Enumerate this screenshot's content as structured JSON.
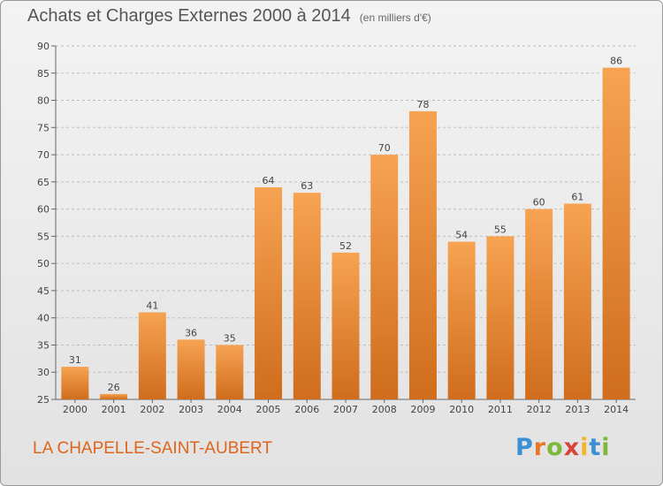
{
  "header": {
    "title": "Achats et Charges Externes 2000 à 2014",
    "unit": "(en milliers d'€)"
  },
  "footer": {
    "commune": "LA CHAPELLE-SAINT-AUBERT",
    "logo_letters": [
      {
        "ch": "P",
        "color": "#3b8fd4"
      },
      {
        "ch": "r",
        "color": "#e8762a"
      },
      {
        "ch": "o",
        "color": "#7cb83a"
      },
      {
        "ch": "x",
        "color": "#d9433a"
      },
      {
        "ch": "i",
        "color": "#f0b429"
      },
      {
        "ch": "t",
        "color": "#3b8fd4"
      },
      {
        "ch": "i",
        "color": "#7cb83a"
      }
    ]
  },
  "colors": {
    "bar_top": "#f6a352",
    "bar_bottom": "#cf6d1c",
    "grid": "#bdbdbd"
  },
  "chart_data": {
    "type": "bar",
    "title": "Achats et Charges Externes 2000 à 2014",
    "xlabel": "",
    "ylabel": "",
    "categories": [
      "2000",
      "2001",
      "2002",
      "2003",
      "2004",
      "2005",
      "2006",
      "2007",
      "2008",
      "2009",
      "2010",
      "2011",
      "2012",
      "2013",
      "2014"
    ],
    "values": [
      31,
      26,
      41,
      36,
      35,
      64,
      63,
      52,
      70,
      78,
      54,
      55,
      60,
      61,
      86
    ],
    "ylim": [
      25,
      90
    ],
    "yticks": [
      25,
      30,
      35,
      40,
      45,
      50,
      55,
      60,
      65,
      70,
      75,
      80,
      85,
      90
    ],
    "grid": "horizontal dashed",
    "legend": "none"
  }
}
